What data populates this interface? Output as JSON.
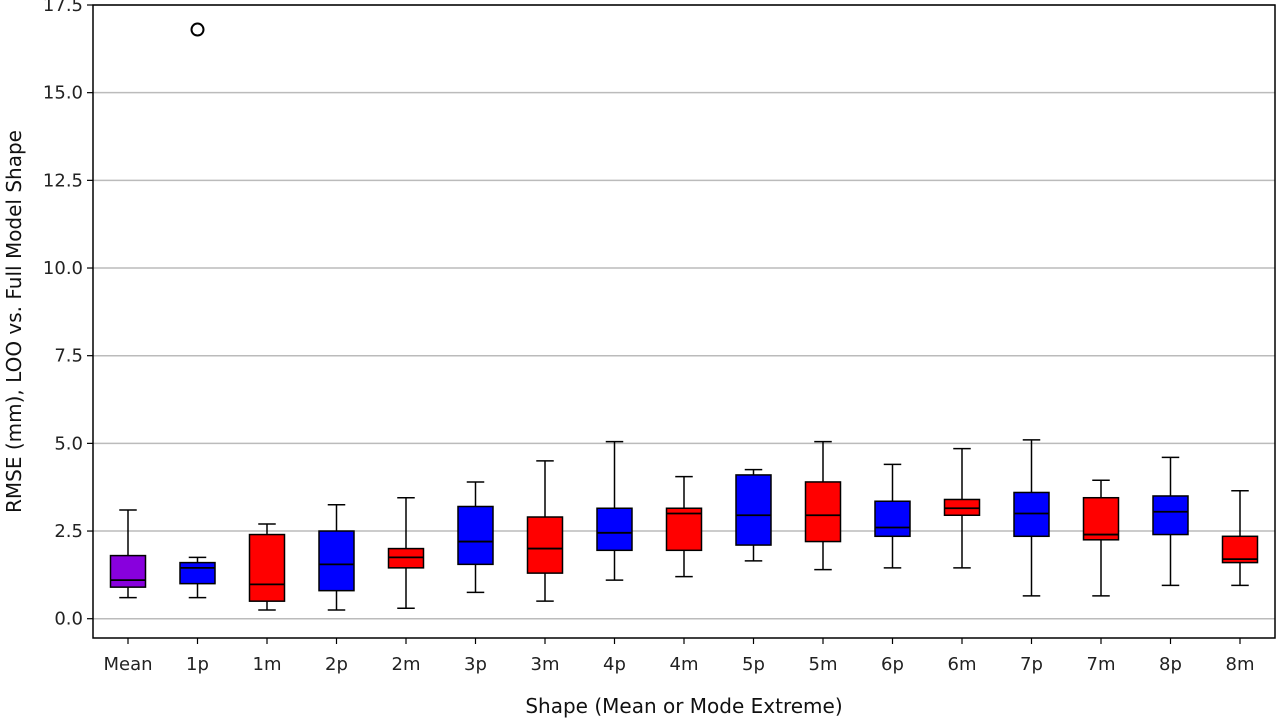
{
  "chart_data": {
    "type": "box",
    "xlabel": "Shape (Mean or Mode Extreme)",
    "ylabel": "RMSE (mm), LOO vs. Full Model Shape",
    "ylim": [
      -0.55,
      17.5
    ],
    "yticks": [
      "0.0",
      "2.5",
      "5.0",
      "7.5",
      "10.0",
      "12.5",
      "15.0",
      "17.5"
    ],
    "grid": "horizontal",
    "colors": {
      "mean": "#8800dd",
      "p": "#0000ff",
      "m": "#ff0000",
      "outline": "#000000",
      "grid": "#bbbbbb"
    },
    "categories": [
      "Mean",
      "1p",
      "1m",
      "2p",
      "2m",
      "3p",
      "3m",
      "4p",
      "4m",
      "5p",
      "5m",
      "6p",
      "6m",
      "7p",
      "7m",
      "8p",
      "8m"
    ],
    "boxes": [
      {
        "category": "Mean",
        "color": "#8800dd",
        "whisker_low": 0.6,
        "q1": 0.9,
        "median": 1.1,
        "q3": 1.8,
        "whisker_high": 3.1
      },
      {
        "category": "1p",
        "color": "#0000ff",
        "whisker_low": 0.6,
        "q1": 1.0,
        "median": 1.45,
        "q3": 1.6,
        "whisker_high": 1.75,
        "outliers": [
          16.8
        ]
      },
      {
        "category": "1m",
        "color": "#ff0000",
        "whisker_low": 0.25,
        "q1": 0.5,
        "median": 0.98,
        "q3": 2.4,
        "whisker_high": 2.7
      },
      {
        "category": "2p",
        "color": "#0000ff",
        "whisker_low": 0.25,
        "q1": 0.8,
        "median": 1.55,
        "q3": 2.5,
        "whisker_high": 3.25
      },
      {
        "category": "2m",
        "color": "#ff0000",
        "whisker_low": 0.3,
        "q1": 1.45,
        "median": 1.75,
        "q3": 2.0,
        "whisker_high": 3.45
      },
      {
        "category": "3p",
        "color": "#0000ff",
        "whisker_low": 0.75,
        "q1": 1.55,
        "median": 2.2,
        "q3": 3.2,
        "whisker_high": 3.9
      },
      {
        "category": "3m",
        "color": "#ff0000",
        "whisker_low": 0.5,
        "q1": 1.3,
        "median": 2.0,
        "q3": 2.9,
        "whisker_high": 4.5
      },
      {
        "category": "4p",
        "color": "#0000ff",
        "whisker_low": 1.1,
        "q1": 1.95,
        "median": 2.45,
        "q3": 3.15,
        "whisker_high": 5.05
      },
      {
        "category": "4m",
        "color": "#ff0000",
        "whisker_low": 1.2,
        "q1": 1.95,
        "median": 3.0,
        "q3": 3.15,
        "whisker_high": 4.05
      },
      {
        "category": "5p",
        "color": "#0000ff",
        "whisker_low": 1.65,
        "q1": 2.1,
        "median": 2.95,
        "q3": 4.1,
        "whisker_high": 4.25
      },
      {
        "category": "5m",
        "color": "#ff0000",
        "whisker_low": 1.4,
        "q1": 2.2,
        "median": 2.95,
        "q3": 3.9,
        "whisker_high": 5.05
      },
      {
        "category": "6p",
        "color": "#0000ff",
        "whisker_low": 1.45,
        "q1": 2.35,
        "median": 2.6,
        "q3": 3.35,
        "whisker_high": 4.4
      },
      {
        "category": "6m",
        "color": "#ff0000",
        "whisker_low": 1.45,
        "q1": 2.95,
        "median": 3.15,
        "q3": 3.4,
        "whisker_high": 4.85
      },
      {
        "category": "7p",
        "color": "#0000ff",
        "whisker_low": 0.65,
        "q1": 2.35,
        "median": 3.0,
        "q3": 3.6,
        "whisker_high": 5.1
      },
      {
        "category": "7m",
        "color": "#ff0000",
        "whisker_low": 0.65,
        "q1": 2.25,
        "median": 2.4,
        "q3": 3.45,
        "whisker_high": 3.95
      },
      {
        "category": "8p",
        "color": "#0000ff",
        "whisker_low": 0.95,
        "q1": 2.4,
        "median": 3.05,
        "q3": 3.5,
        "whisker_high": 4.6
      },
      {
        "category": "8m",
        "color": "#ff0000",
        "whisker_low": 0.95,
        "q1": 1.6,
        "median": 1.7,
        "q3": 2.35,
        "whisker_high": 3.65
      }
    ]
  }
}
